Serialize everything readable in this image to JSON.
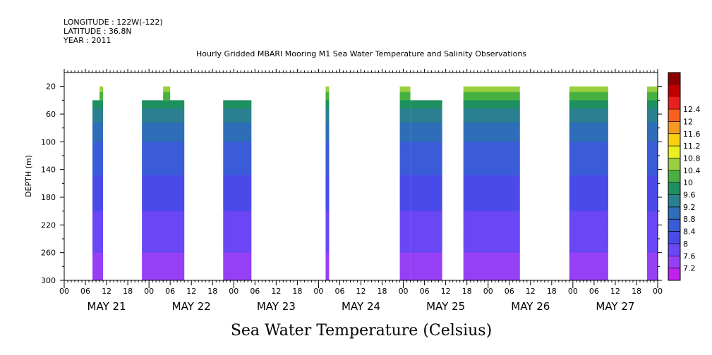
{
  "header": {
    "longitude": "LONGITUDE : 122W(-122)",
    "latitude": "LATITUDE : 36.8N",
    "year": "YEAR : 2011"
  },
  "chart_data": {
    "type": "heatmap",
    "title": "Hourly Gridded MBARI Mooring M1 Sea Water Temperature and Salinity Observations",
    "ylabel": "DEPTH (m)",
    "xlabel_main": "Sea Water Temperature (Celsius)",
    "x_unit": "hours since 2011-05-21 00:00",
    "xlim": [
      0,
      168
    ],
    "ylim": [
      300,
      0
    ],
    "y_ticks": [
      20,
      60,
      100,
      140,
      180,
      220,
      260,
      300
    ],
    "x_tick_labels": [
      "00",
      "06",
      "12",
      "18",
      "00",
      "06",
      "12",
      "18",
      "00",
      "06",
      "12",
      "18",
      "00",
      "06",
      "12",
      "18",
      "00",
      "06",
      "12",
      "18",
      "00",
      "06",
      "12",
      "18",
      "00",
      "06",
      "12",
      "18",
      "00"
    ],
    "day_labels": [
      "MAY 21",
      "MAY 22",
      "MAY 23",
      "MAY 24",
      "MAY 25",
      "MAY 26",
      "MAY 27"
    ],
    "colorbar": {
      "levels": [
        7.2,
        7.6,
        8,
        8.4,
        8.8,
        9.2,
        9.6,
        10,
        10.4,
        10.8,
        11.2,
        11.6,
        12,
        12.4
      ],
      "colors": [
        "#c020f0",
        "#9640f5",
        "#6a46f5",
        "#4a4ae8",
        "#3a5cd8",
        "#2e6eb8",
        "#2a8090",
        "#1e9060",
        "#48b040",
        "#9ad040",
        "#e8f020",
        "#f8d010",
        "#f89a20",
        "#f86020",
        "#e82020",
        "#c00000",
        "#8a0000"
      ]
    },
    "depth_profiles": [
      {
        "depth": 20,
        "temp": 10.6
      },
      {
        "depth": 40,
        "temp": 10.0
      },
      {
        "depth": 60,
        "temp": 9.4
      },
      {
        "depth": 80,
        "temp": 9.0
      },
      {
        "depth": 100,
        "temp": 8.8
      },
      {
        "depth": 120,
        "temp": 8.6
      },
      {
        "depth": 140,
        "temp": 8.45
      },
      {
        "depth": 160,
        "temp": 8.3
      },
      {
        "depth": 180,
        "temp": 8.15
      },
      {
        "depth": 200,
        "temp": 8.0
      },
      {
        "depth": 220,
        "temp": 7.9
      },
      {
        "depth": 240,
        "temp": 7.75
      },
      {
        "depth": 260,
        "temp": 7.6
      },
      {
        "depth": 280,
        "temp": 7.45
      },
      {
        "depth": 300,
        "temp": 7.3
      }
    ],
    "data_segments": [
      {
        "x_start": 8,
        "x_end": 11,
        "depth_top": 40,
        "notch": {
          "x_start": 10,
          "x_end": 11,
          "depth_top": 20
        }
      },
      {
        "x_start": 22,
        "x_end": 34,
        "depth_top": 40,
        "notch": {
          "x_start": 28,
          "x_end": 30,
          "depth_top": 20
        }
      },
      {
        "x_start": 45,
        "x_end": 53,
        "depth_top": 40
      },
      {
        "x_start": 74,
        "x_end": 75,
        "depth_top": 20
      },
      {
        "x_start": 95,
        "x_end": 98,
        "depth_top": 20
      },
      {
        "x_start": 98,
        "x_end": 107,
        "depth_top": 40
      },
      {
        "x_start": 113,
        "x_end": 129,
        "depth_top": 20
      },
      {
        "x_start": 143,
        "x_end": 154,
        "depth_top": 20
      },
      {
        "x_start": 165,
        "x_end": 168,
        "depth_top": 20
      }
    ]
  }
}
